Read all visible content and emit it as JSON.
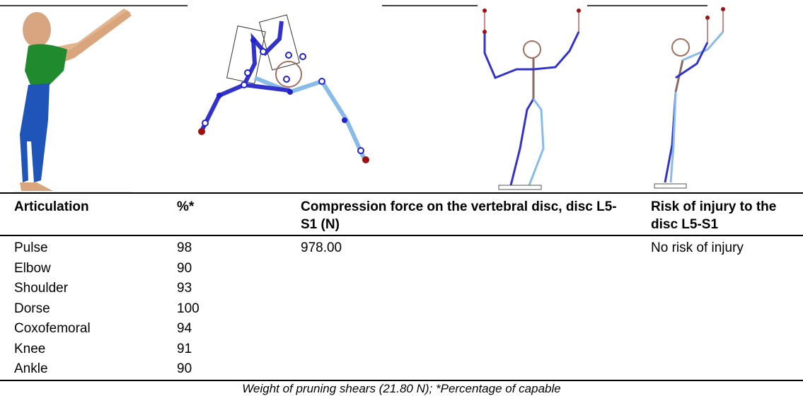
{
  "table": {
    "columns": [
      "Articulation",
      "%*",
      "Compression force on the vertebral disc, disc L5-S1 (N)",
      "Risk of injury to the disc L5-S1"
    ],
    "rows": [
      [
        "Pulse",
        "98",
        "978.00",
        "No risk of injury"
      ],
      [
        "Elbow",
        "90"
      ],
      [
        "Shoulder",
        "93"
      ],
      [
        "Dorse",
        "100"
      ],
      [
        "Coxofemoral",
        "94"
      ],
      [
        "Knee",
        "91"
      ],
      [
        "Ankle",
        "90"
      ]
    ],
    "caption": "Weight of pruning shears (21.80 N); *Percentage of capable"
  }
}
